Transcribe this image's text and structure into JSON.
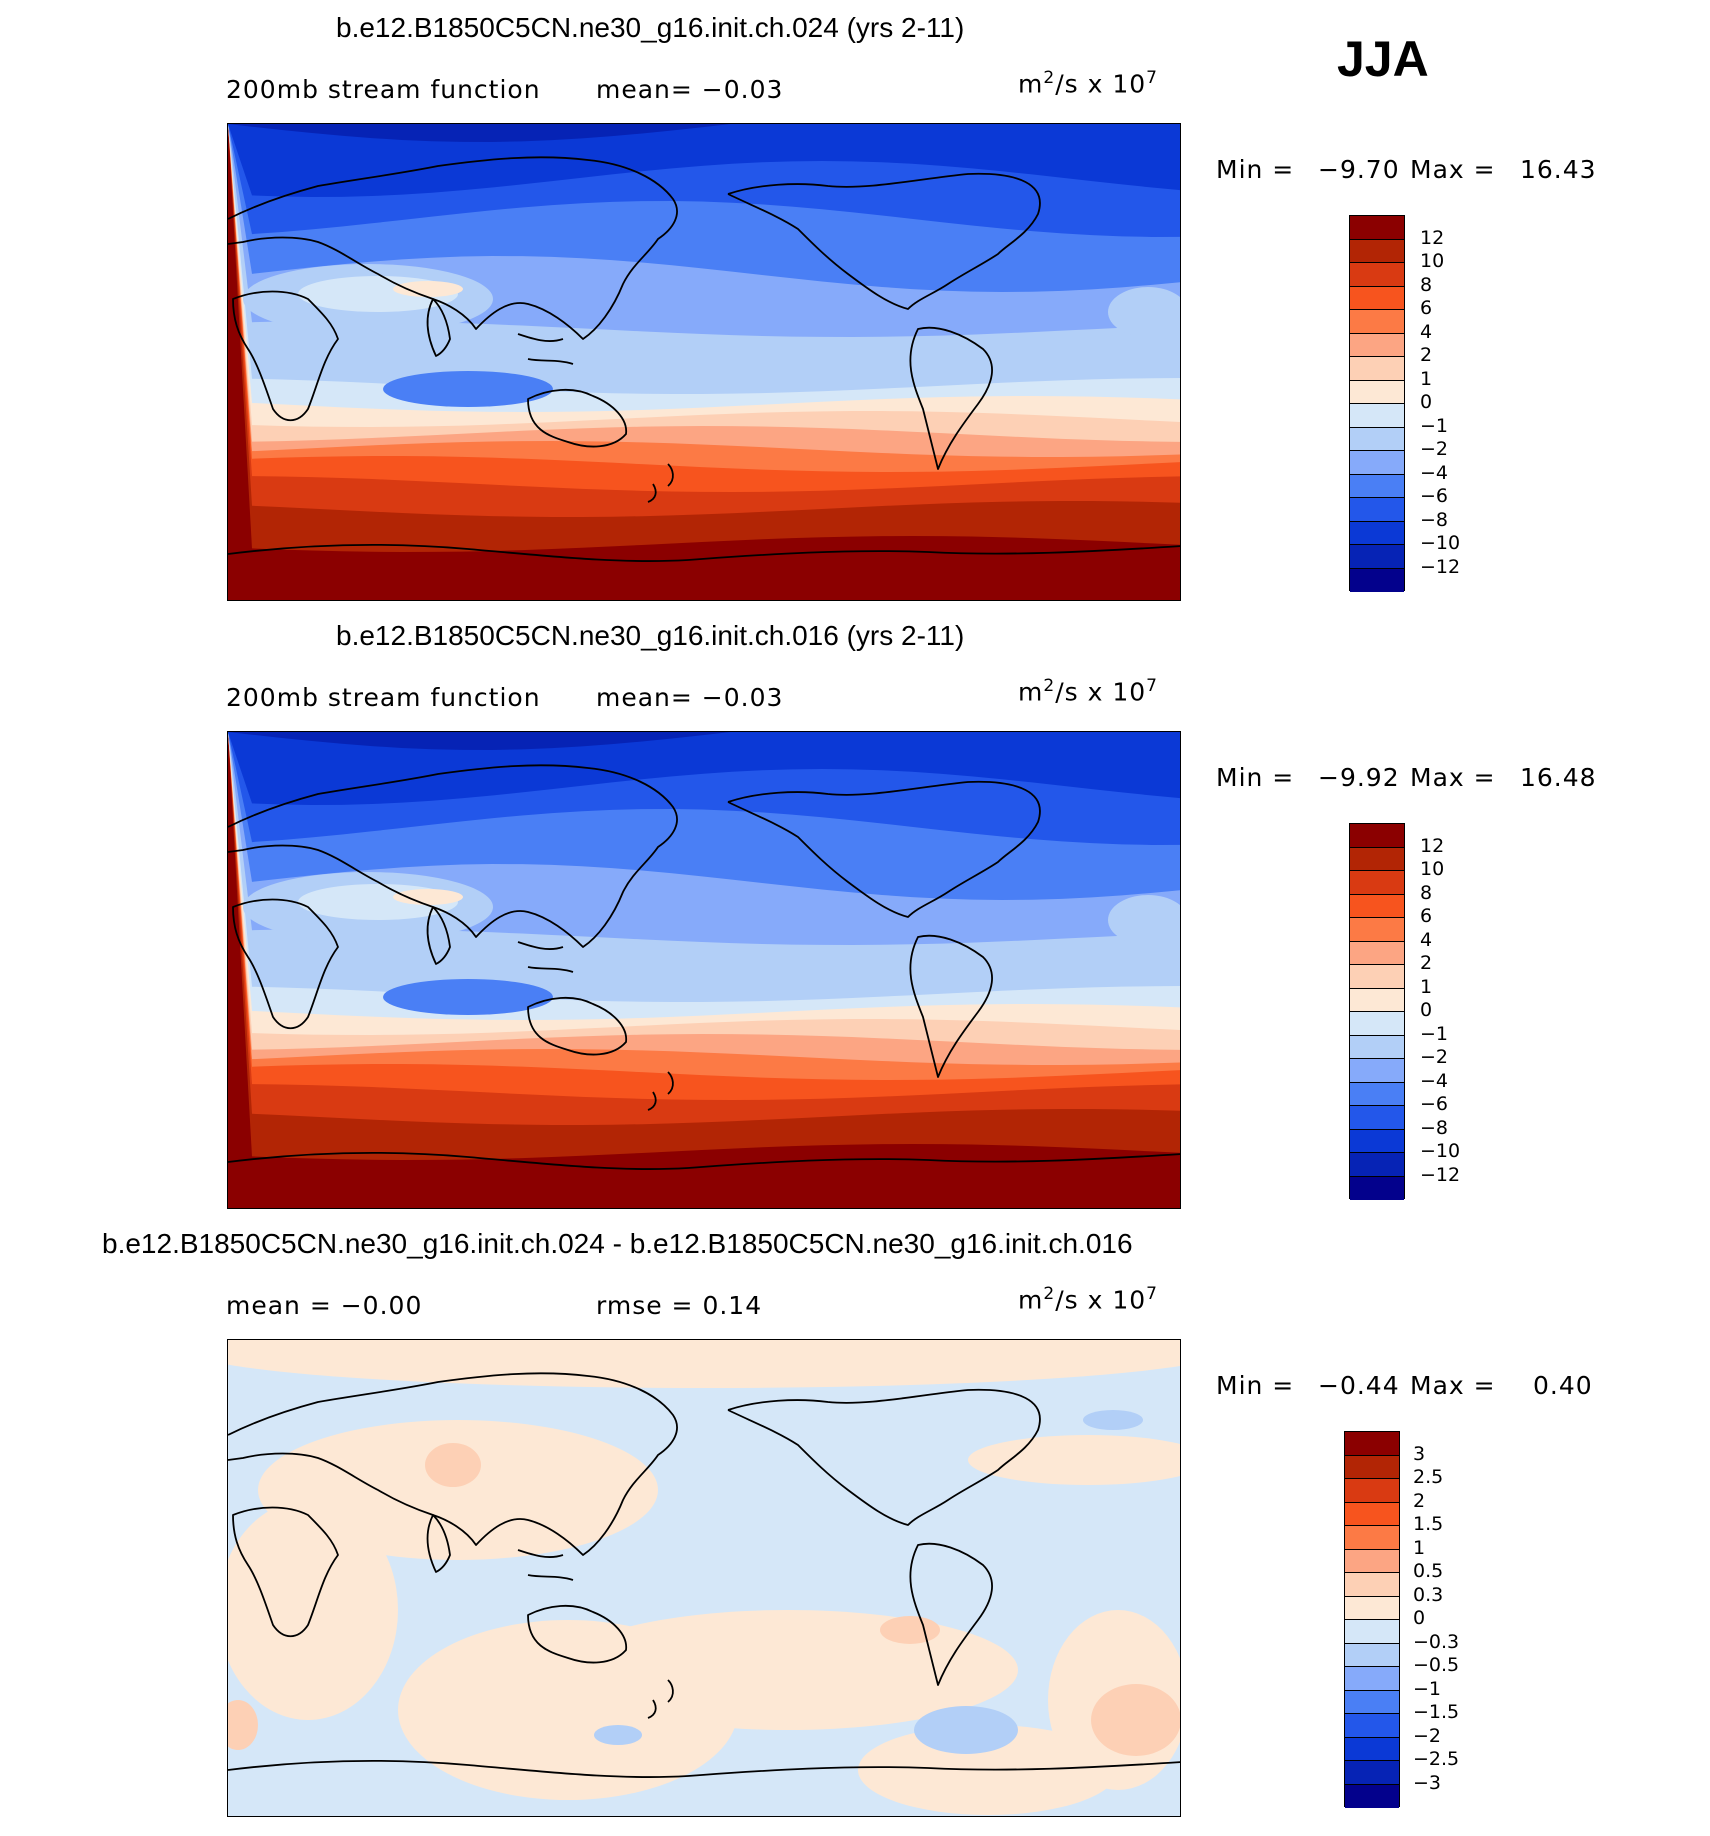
{
  "season": "JJA",
  "units": {
    "base": "m",
    "exp1": "2",
    "mid": "/s x 10",
    "exp2": "7"
  },
  "chart_data": [
    {
      "type": "heatmap",
      "title": "b.e12.B1850C5CN.ne30_g16.init.ch.024 (yrs 2-11)",
      "subtitle": "200mb stream function",
      "stat_left": "mean=  −0.03",
      "min_label": "Min =",
      "min_value": "−9.70",
      "max_label": "Max =",
      "max_value": "16.43",
      "legend_levels": [
        "12",
        "10",
        "8",
        "6",
        "4",
        "2",
        "1",
        "0",
        "−1",
        "−2",
        "−4",
        "−6",
        "−8",
        "−10",
        "−12"
      ],
      "legend_colors": [
        "#8b0000",
        "#b22505",
        "#d93a12",
        "#f7541e",
        "#fc7a45",
        "#fca583",
        "#fdd0b5",
        "#fde8d5",
        "#d5e7f8",
        "#b2cff7",
        "#86aafa",
        "#4a7ff5",
        "#2357ea",
        "#0b39d6",
        "#0623b5",
        "#03018c"
      ],
      "field": "base"
    },
    {
      "type": "heatmap",
      "title": "b.e12.B1850C5CN.ne30_g16.init.ch.016 (yrs 2-11)",
      "subtitle": "200mb stream function",
      "stat_left": "mean=  −0.03",
      "min_label": "Min =",
      "min_value": "−9.92",
      "max_label": "Max =",
      "max_value": "16.48",
      "legend_levels": [
        "12",
        "10",
        "8",
        "6",
        "4",
        "2",
        "1",
        "0",
        "−1",
        "−2",
        "−4",
        "−6",
        "−8",
        "−10",
        "−12"
      ],
      "legend_colors": [
        "#8b0000",
        "#b22505",
        "#d93a12",
        "#f7541e",
        "#fc7a45",
        "#fca583",
        "#fdd0b5",
        "#fde8d5",
        "#d5e7f8",
        "#b2cff7",
        "#86aafa",
        "#4a7ff5",
        "#2357ea",
        "#0b39d6",
        "#0623b5",
        "#03018c"
      ],
      "field": "base"
    },
    {
      "type": "heatmap",
      "title": "b.e12.B1850C5CN.ne30_g16.init.ch.024 - b.e12.B1850C5CN.ne30_g16.init.ch.016",
      "subtitle": "mean =  −0.00",
      "stat_left": "rmse =   0.14",
      "min_label": "Min =",
      "min_value": "−0.44",
      "max_label": "Max =",
      "max_value": "0.40",
      "legend_levels": [
        "3",
        "2.5",
        "2",
        "1.5",
        "1",
        "0.5",
        "0.3",
        "0",
        "−0.3",
        "−0.5",
        "−1",
        "−1.5",
        "−2",
        "−2.5",
        "−3"
      ],
      "legend_colors": [
        "#8b0000",
        "#b22505",
        "#d93a12",
        "#f7541e",
        "#fc7a45",
        "#fca583",
        "#fdd0b5",
        "#fde8d5",
        "#d5e7f8",
        "#b2cff7",
        "#86aafa",
        "#4a7ff5",
        "#2357ea",
        "#0b39d6",
        "#0623b5",
        "#03018c"
      ],
      "field": "diff"
    }
  ]
}
